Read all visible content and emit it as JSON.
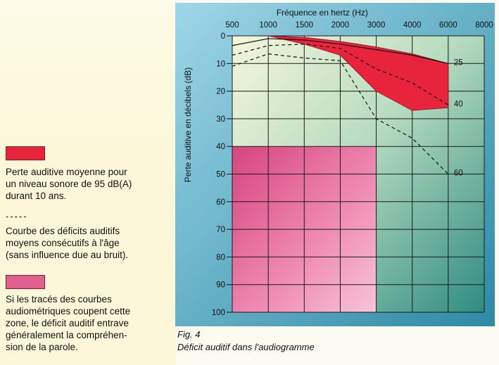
{
  "legend": {
    "red_label": "Perte auditive moyenne pour\nun niveau sonore de 95 dB(A)\ndurant 10 ans.",
    "dash_symbol": "-----",
    "dash_label": "Courbe des déficits auditifs\nmoyens consécutifs à l'âge\n(sans influence due au bruit).",
    "pink_label": "Si les tracés des courbes\naudiométriques coupent cette\nzone, le déficit auditif entrave\ngénéralement la compréhen-\nsion de la parole."
  },
  "caption": {
    "fig": "Fig. 4",
    "text": "Déficit auditif dans l'audiogramme"
  },
  "colors": {
    "noise_band": "#e8243c",
    "speech_zone": "#e0608e",
    "chart_bg_light": "#e8f2c8",
    "chart_bg_dark": "#2f8c82"
  },
  "chart_data": {
    "type": "line",
    "title": "Fréquence en hertz (Hz)",
    "ylabel": "Perte auditive en décibels (dB)",
    "x_ticks": [
      "500",
      "1000",
      "1500",
      "2000",
      "3000",
      "4000",
      "6000",
      "8000"
    ],
    "y_ticks": [
      "0",
      "10",
      "20",
      "30",
      "40",
      "50",
      "60",
      "70",
      "80",
      "90",
      "100"
    ],
    "ylim": [
      0,
      100
    ],
    "y_inverted": true,
    "noise_band": {
      "label": "Perte auditive moyenne pour un niveau sonore de 95 dB(A) durant 10 ans",
      "upper": [
        {
          "x": "1000",
          "y": 0
        },
        {
          "x": "1500",
          "y": 0.5
        },
        {
          "x": "2000",
          "y": 2
        },
        {
          "x": "3000",
          "y": 4
        },
        {
          "x": "4000",
          "y": 6.5
        },
        {
          "x": "6000",
          "y": 10
        }
      ],
      "lower": [
        {
          "x": "6000",
          "y": 26
        },
        {
          "x": "4000",
          "y": 27
        },
        {
          "x": "3000",
          "y": 20
        },
        {
          "x": "2000",
          "y": 7
        },
        {
          "x": "1500",
          "y": 3
        },
        {
          "x": "1000",
          "y": 0
        }
      ]
    },
    "speech_zone": {
      "x_from": "500",
      "x_to": "3000",
      "y_from": 40,
      "y_to": 100
    },
    "series": [
      {
        "name": "25",
        "style": "solid",
        "points": [
          {
            "x": "500",
            "y": 3.5
          },
          {
            "x": "1000",
            "y": 1
          },
          {
            "x": "1500",
            "y": 1.5
          },
          {
            "x": "2000",
            "y": 3
          },
          {
            "x": "3000",
            "y": 5
          },
          {
            "x": "4000",
            "y": 7
          },
          {
            "x": "6000",
            "y": 10
          }
        ]
      },
      {
        "name": "40",
        "style": "dashed",
        "points": [
          {
            "x": "500",
            "y": 7
          },
          {
            "x": "1000",
            "y": 3.5
          },
          {
            "x": "1500",
            "y": 3
          },
          {
            "x": "2000",
            "y": 4.5
          },
          {
            "x": "3000",
            "y": 12
          },
          {
            "x": "4000",
            "y": 17
          },
          {
            "x": "6000",
            "y": 25
          }
        ]
      },
      {
        "name": "60",
        "style": "dashed",
        "points": [
          {
            "x": "500",
            "y": 11
          },
          {
            "x": "1000",
            "y": 6.5
          },
          {
            "x": "1500",
            "y": 8
          },
          {
            "x": "2000",
            "y": 9
          },
          {
            "x": "3000",
            "y": 30
          },
          {
            "x": "4000",
            "y": 37
          },
          {
            "x": "6000",
            "y": 50
          }
        ]
      }
    ]
  }
}
